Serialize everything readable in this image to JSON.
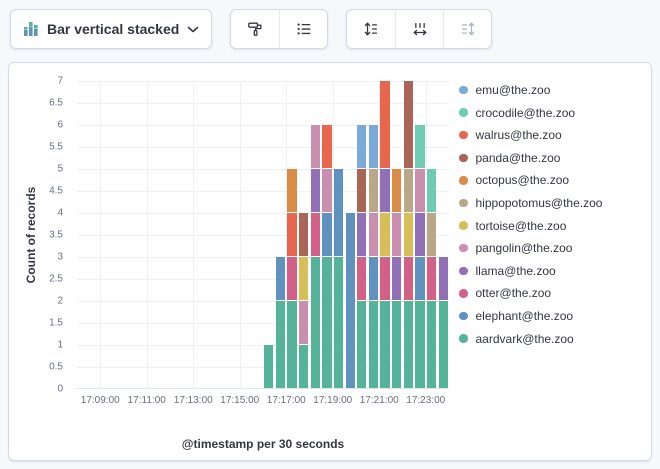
{
  "toolbar": {
    "chart_type": {
      "label": "Bar vertical stacked",
      "icon": "bar-stacked-icon"
    },
    "buttons": {
      "visual_options": "Visual options",
      "legend": "Legend",
      "left_axis": "Left axis",
      "bottom_axis": "Bottom axis",
      "right_axis": "Right axis"
    }
  },
  "chart_data": {
    "type": "bar",
    "mode": "stacked-vertical",
    "title": "",
    "xlabel": "@timestamp per 30 seconds",
    "ylabel": "Count of records",
    "ylim": [
      0,
      7
    ],
    "y_tick_step": 0.5,
    "x_domain": [
      "17:08:00",
      "17:24:00"
    ],
    "bucket_seconds": 30,
    "x_ticks": [
      "17:09:00",
      "17:11:00",
      "17:13:00",
      "17:15:00",
      "17:17:00",
      "17:19:00",
      "17:21:00",
      "17:23:00"
    ],
    "grid": true,
    "legend_position": "right",
    "series": [
      {
        "name": "emu@the.zoo",
        "color": "#79AAD9"
      },
      {
        "name": "crocodile@the.zoo",
        "color": "#6DCCB1"
      },
      {
        "name": "walrus@the.zoo",
        "color": "#E7664C"
      },
      {
        "name": "panda@the.zoo",
        "color": "#AA6556"
      },
      {
        "name": "octopus@the.zoo",
        "color": "#DA8B45"
      },
      {
        "name": "hippopotomus@the.zoo",
        "color": "#B9A888"
      },
      {
        "name": "tortoise@the.zoo",
        "color": "#D6BF57"
      },
      {
        "name": "pangolin@the.zoo",
        "color": "#CA8EAE"
      },
      {
        "name": "llama@the.zoo",
        "color": "#9170B8"
      },
      {
        "name": "otter@the.zoo",
        "color": "#D36086"
      },
      {
        "name": "elephant@the.zoo",
        "color": "#6092C0"
      },
      {
        "name": "aardvark@the.zoo",
        "color": "#54B399"
      }
    ],
    "bars": [
      {
        "time": "17:16:00",
        "segments": [
          {
            "name": "aardvark@the.zoo",
            "value": 1
          }
        ]
      },
      {
        "time": "17:16:30",
        "segments": [
          {
            "name": "aardvark@the.zoo",
            "value": 2
          },
          {
            "name": "elephant@the.zoo",
            "value": 1
          }
        ]
      },
      {
        "time": "17:17:00",
        "segments": [
          {
            "name": "aardvark@the.zoo",
            "value": 2
          },
          {
            "name": "otter@the.zoo",
            "value": 1
          },
          {
            "name": "walrus@the.zoo",
            "value": 1
          },
          {
            "name": "octopus@the.zoo",
            "value": 1
          }
        ]
      },
      {
        "time": "17:17:30",
        "segments": [
          {
            "name": "aardvark@the.zoo",
            "value": 1
          },
          {
            "name": "pangolin@the.zoo",
            "value": 1
          },
          {
            "name": "tortoise@the.zoo",
            "value": 1
          },
          {
            "name": "panda@the.zoo",
            "value": 1
          }
        ]
      },
      {
        "time": "17:18:00",
        "segments": [
          {
            "name": "aardvark@the.zoo",
            "value": 3
          },
          {
            "name": "otter@the.zoo",
            "value": 1
          },
          {
            "name": "llama@the.zoo",
            "value": 1
          },
          {
            "name": "pangolin@the.zoo",
            "value": 1
          }
        ]
      },
      {
        "time": "17:18:30",
        "segments": [
          {
            "name": "aardvark@the.zoo",
            "value": 3
          },
          {
            "name": "elephant@the.zoo",
            "value": 1
          },
          {
            "name": "pangolin@the.zoo",
            "value": 1
          },
          {
            "name": "walrus@the.zoo",
            "value": 1
          }
        ]
      },
      {
        "time": "17:19:00",
        "segments": [
          {
            "name": "aardvark@the.zoo",
            "value": 3
          },
          {
            "name": "elephant@the.zoo",
            "value": 2
          }
        ]
      },
      {
        "time": "17:19:30",
        "segments": [
          {
            "name": "elephant@the.zoo",
            "value": 4
          }
        ]
      },
      {
        "time": "17:20:00",
        "segments": [
          {
            "name": "aardvark@the.zoo",
            "value": 2
          },
          {
            "name": "otter@the.zoo",
            "value": 1
          },
          {
            "name": "llama@the.zoo",
            "value": 1
          },
          {
            "name": "panda@the.zoo",
            "value": 1
          },
          {
            "name": "emu@the.zoo",
            "value": 1
          }
        ]
      },
      {
        "time": "17:20:30",
        "segments": [
          {
            "name": "aardvark@the.zoo",
            "value": 2
          },
          {
            "name": "elephant@the.zoo",
            "value": 1
          },
          {
            "name": "pangolin@the.zoo",
            "value": 1
          },
          {
            "name": "hippopotomus@the.zoo",
            "value": 1
          },
          {
            "name": "emu@the.zoo",
            "value": 1
          }
        ]
      },
      {
        "time": "17:21:00",
        "segments": [
          {
            "name": "aardvark@the.zoo",
            "value": 2
          },
          {
            "name": "otter@the.zoo",
            "value": 1
          },
          {
            "name": "tortoise@the.zoo",
            "value": 1
          },
          {
            "name": "llama@the.zoo",
            "value": 1
          },
          {
            "name": "walrus@the.zoo",
            "value": 2
          }
        ]
      },
      {
        "time": "17:21:30",
        "segments": [
          {
            "name": "aardvark@the.zoo",
            "value": 2
          },
          {
            "name": "llama@the.zoo",
            "value": 1
          },
          {
            "name": "pangolin@the.zoo",
            "value": 1
          },
          {
            "name": "octopus@the.zoo",
            "value": 1
          }
        ]
      },
      {
        "time": "17:22:00",
        "segments": [
          {
            "name": "aardvark@the.zoo",
            "value": 2
          },
          {
            "name": "otter@the.zoo",
            "value": 1
          },
          {
            "name": "tortoise@the.zoo",
            "value": 1
          },
          {
            "name": "hippopotomus@the.zoo",
            "value": 1
          },
          {
            "name": "panda@the.zoo",
            "value": 2
          }
        ]
      },
      {
        "time": "17:22:30",
        "segments": [
          {
            "name": "aardvark@the.zoo",
            "value": 2
          },
          {
            "name": "elephant@the.zoo",
            "value": 1
          },
          {
            "name": "llama@the.zoo",
            "value": 1
          },
          {
            "name": "pangolin@the.zoo",
            "value": 1
          },
          {
            "name": "crocodile@the.zoo",
            "value": 1
          }
        ]
      },
      {
        "time": "17:23:00",
        "segments": [
          {
            "name": "aardvark@the.zoo",
            "value": 2
          },
          {
            "name": "otter@the.zoo",
            "value": 1
          },
          {
            "name": "hippopotomus@the.zoo",
            "value": 1
          },
          {
            "name": "crocodile@the.zoo",
            "value": 1
          }
        ]
      },
      {
        "time": "17:23:30",
        "segments": [
          {
            "name": "aardvark@the.zoo",
            "value": 2
          },
          {
            "name": "llama@the.zoo",
            "value": 1
          }
        ]
      }
    ]
  }
}
